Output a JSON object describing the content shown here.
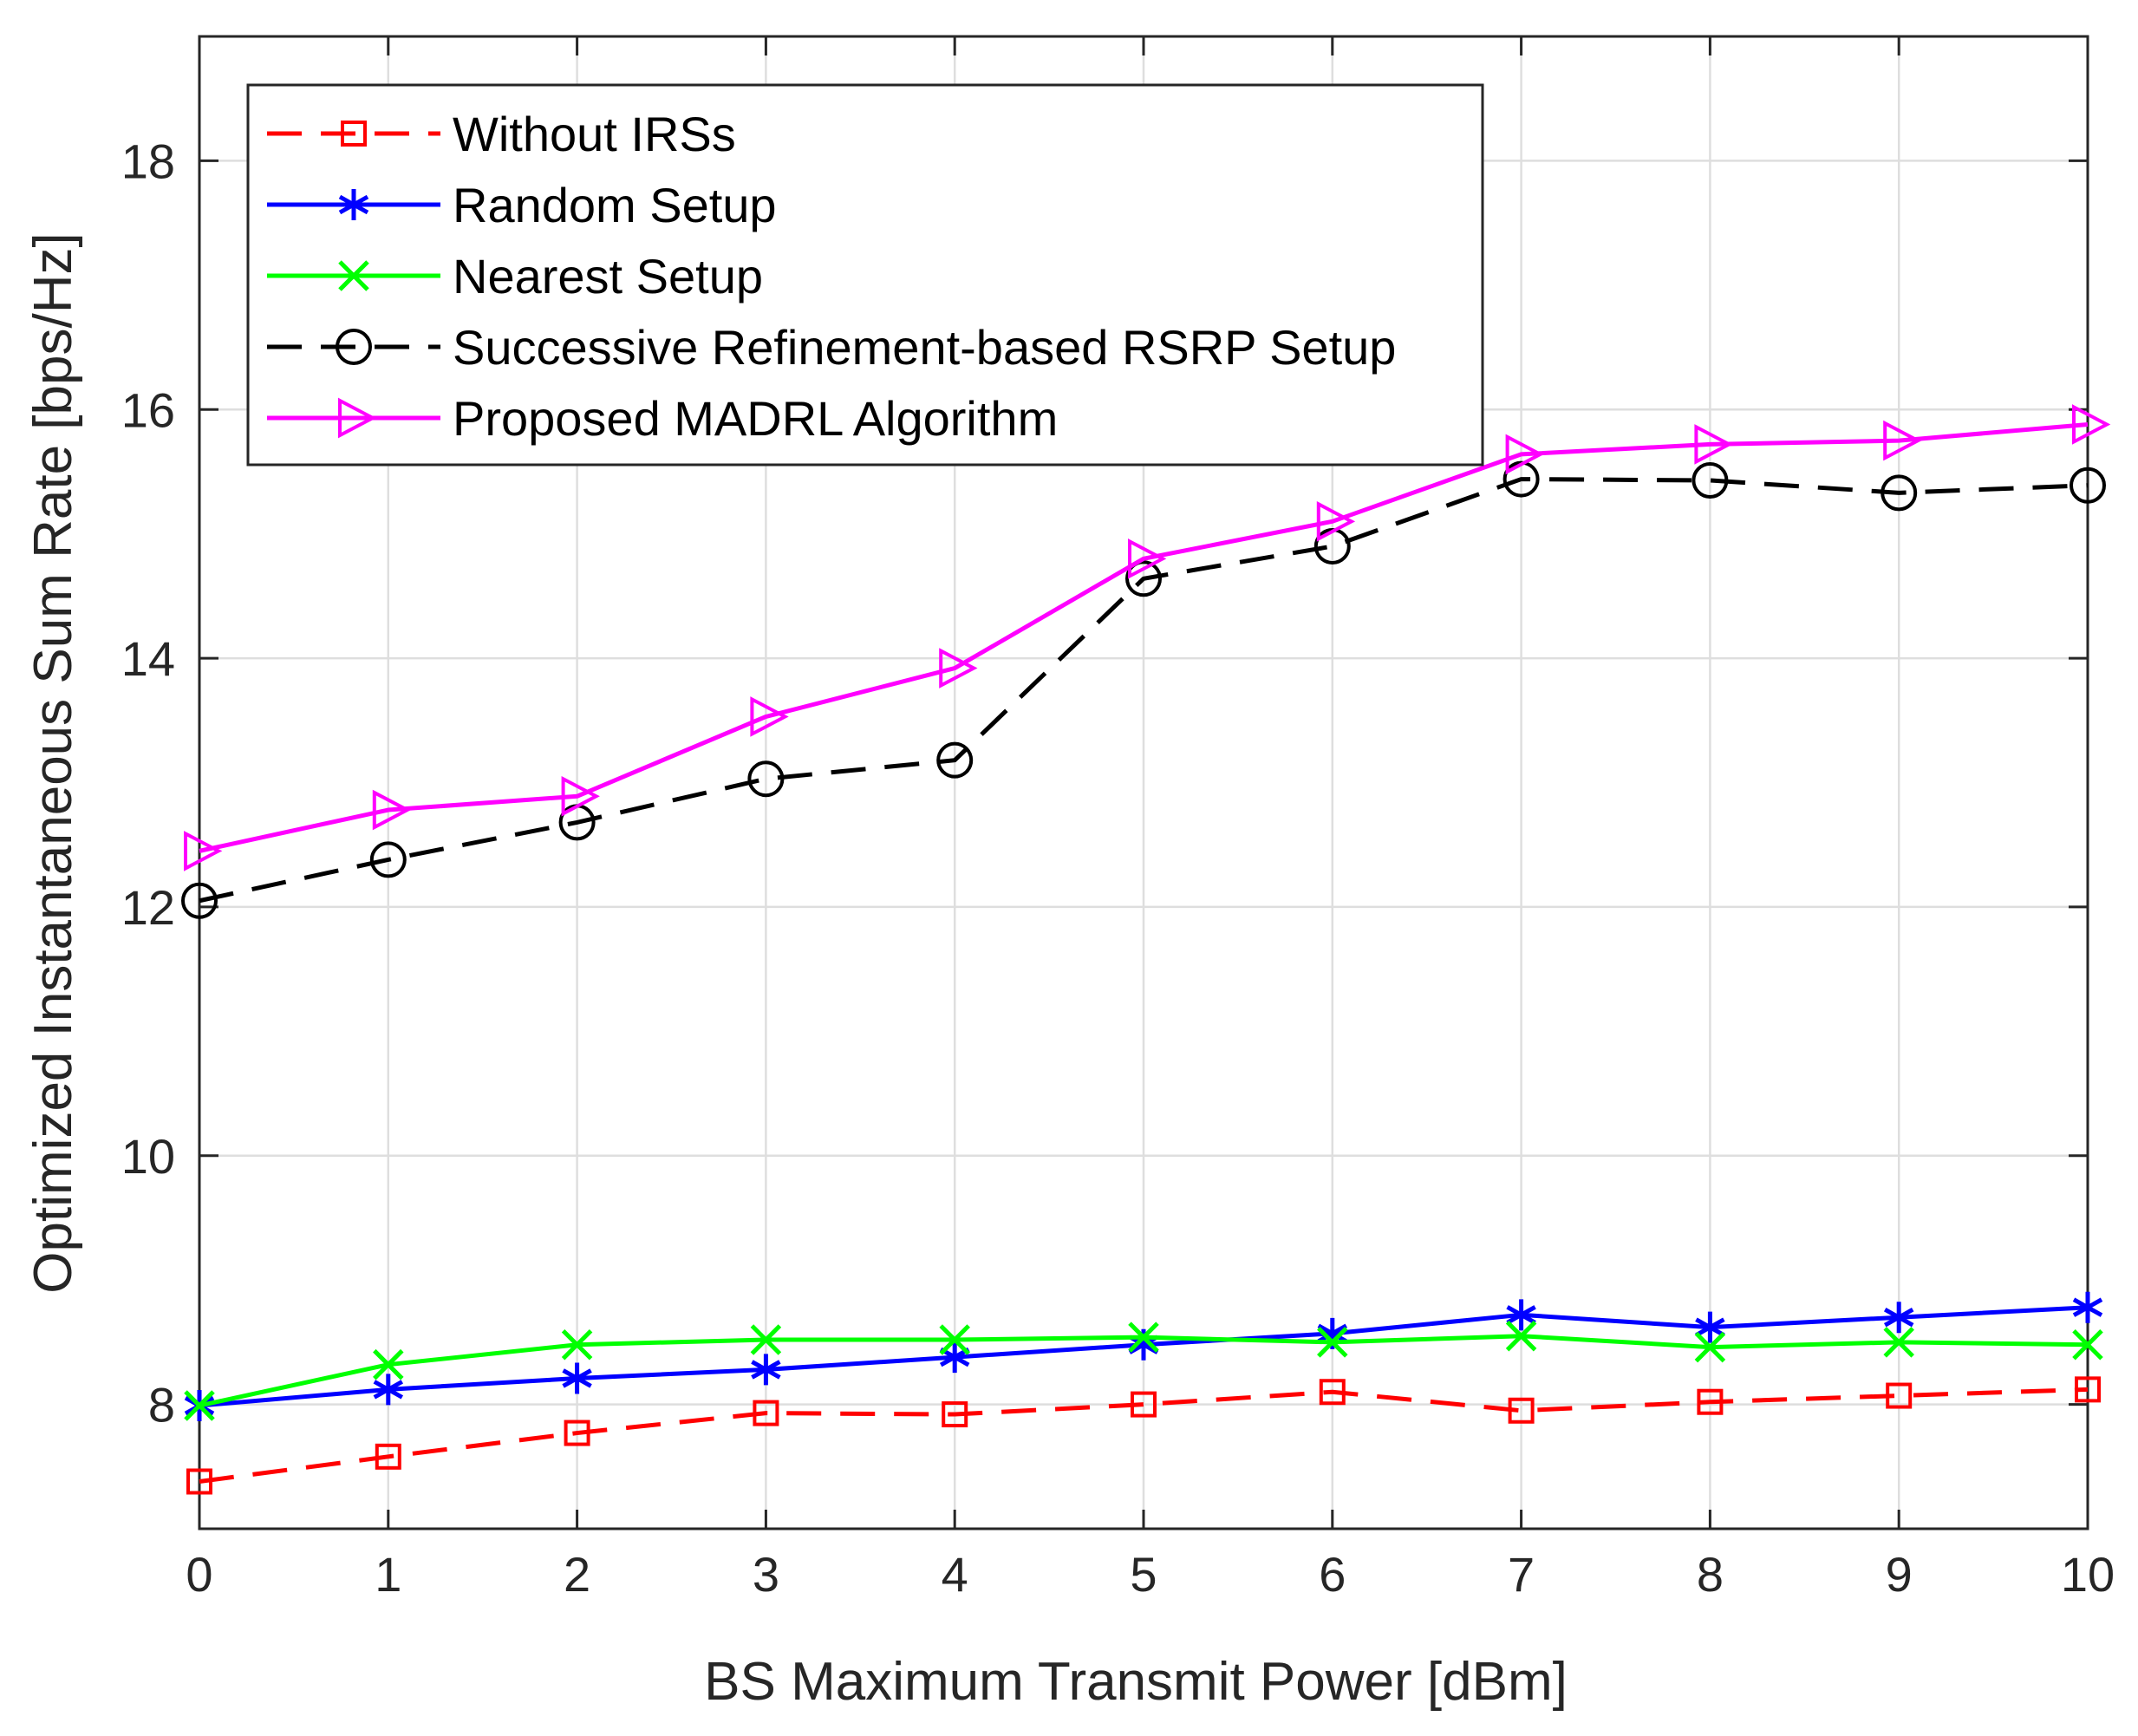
{
  "chart_data": {
    "type": "line",
    "title": "",
    "xlabel": "BS Maximum Transmit Power [dBm]",
    "ylabel": "Optimized Instantaneous Sum Rate [bps/Hz]",
    "xlim": [
      0,
      10
    ],
    "ylim": [
      7,
      19
    ],
    "xticks": [
      "0",
      "1",
      "2",
      "3",
      "4",
      "5",
      "6",
      "7",
      "8",
      "9",
      "10"
    ],
    "yticks": [
      "8",
      "10",
      "12",
      "14",
      "16",
      "18"
    ],
    "grid": true,
    "legend_position": "top-left",
    "x": [
      0,
      1,
      2,
      3,
      4,
      5,
      6,
      7,
      8,
      9,
      10
    ],
    "series": [
      {
        "name": "Without IRSs",
        "color": "#ff0000",
        "line": "dashed",
        "marker": "square",
        "values": [
          7.38,
          7.58,
          7.77,
          7.93,
          7.92,
          8.0,
          8.1,
          7.95,
          8.02,
          8.07,
          8.12
        ]
      },
      {
        "name": "Random Setup",
        "color": "#0000ff",
        "line": "solid",
        "marker": "star",
        "values": [
          7.99,
          8.12,
          8.21,
          8.28,
          8.38,
          8.48,
          8.57,
          8.72,
          8.62,
          8.7,
          8.78
        ]
      },
      {
        "name": "Nearest Setup",
        "color": "#00ff00",
        "line": "solid",
        "marker": "x",
        "values": [
          7.99,
          8.32,
          8.48,
          8.52,
          8.52,
          8.54,
          8.5,
          8.55,
          8.46,
          8.5,
          8.48
        ]
      },
      {
        "name": "Successive Refinement-based RSRP Setup",
        "color": "#000000",
        "line": "dashed",
        "marker": "circle",
        "values": [
          12.05,
          12.38,
          12.68,
          13.03,
          13.18,
          14.64,
          14.9,
          15.44,
          15.43,
          15.33,
          15.39
        ]
      },
      {
        "name": "Proposed MADRL Algorithm",
        "color": "#ff00ff",
        "line": "solid",
        "marker": "triangle-right",
        "values": [
          12.45,
          12.78,
          12.89,
          13.53,
          13.92,
          14.8,
          15.1,
          15.64,
          15.72,
          15.75,
          15.88
        ]
      }
    ]
  }
}
